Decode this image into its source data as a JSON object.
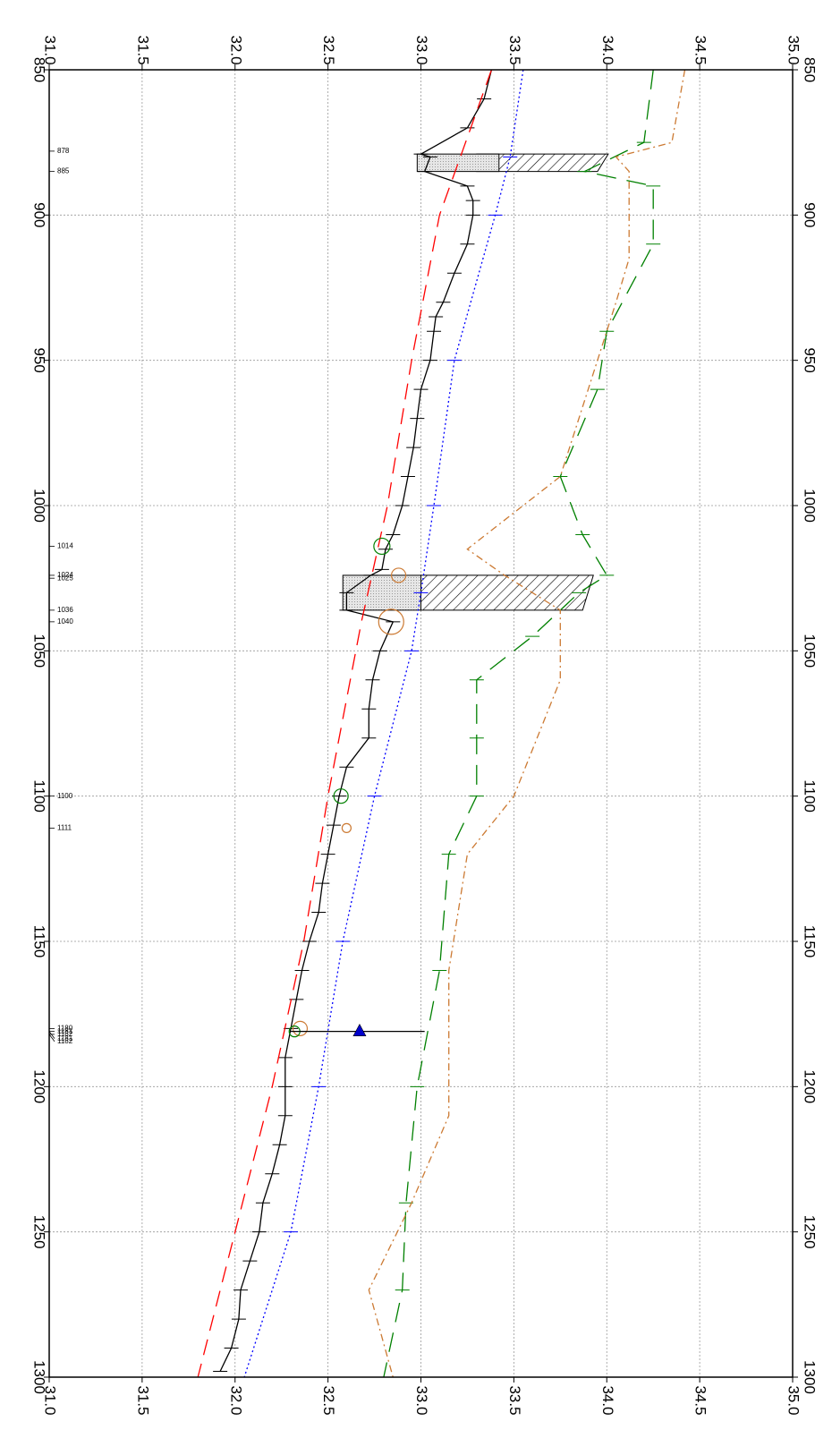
{
  "chart_data": {
    "type": "line",
    "orientation": "rotated-90-clockwise",
    "x_axis": {
      "range": [
        850,
        1300
      ],
      "ticks": [
        "850",
        "900",
        "950",
        "1000",
        "1050",
        "1100",
        "1150",
        "1200",
        "1250",
        "1300"
      ],
      "tick_values": [
        850,
        900,
        950,
        1000,
        1050,
        1100,
        1150,
        1200,
        1250,
        1300
      ]
    },
    "y_axis": {
      "range": [
        31.0,
        35.0
      ],
      "ticks": [
        "31.0",
        "31.5",
        "32.0",
        "32.5",
        "33.0",
        "33.5",
        "34.0",
        "34.5",
        "35.0"
      ],
      "tick_values": [
        31.0,
        31.5,
        32.0,
        32.5,
        33.0,
        33.5,
        34.0,
        34.5,
        35.0
      ]
    },
    "grid": true,
    "station_labels": [
      {
        "x": 878,
        "label": "878"
      },
      {
        "x": 885,
        "label": "885"
      },
      {
        "x": 1014,
        "label": "1014"
      },
      {
        "x": 1024,
        "label": "1024"
      },
      {
        "x": 1025,
        "label": "1025"
      },
      {
        "x": 1036,
        "label": "1036"
      },
      {
        "x": 1040,
        "label": "1040"
      },
      {
        "x": 1100,
        "label": "1100"
      },
      {
        "x": 1111,
        "label": "1111"
      },
      {
        "x": 1180,
        "label": "1180"
      },
      {
        "x": 1181,
        "label": "1181"
      },
      {
        "x": 1181,
        "label": "1181"
      },
      {
        "x": 1182,
        "label": "1182"
      },
      {
        "x": 1182,
        "label": "1182"
      }
    ],
    "series": [
      {
        "style": "solid",
        "color": "#000000",
        "points": [
          [
            850,
            33.38
          ],
          [
            860,
            33.34
          ],
          [
            870,
            33.25
          ],
          [
            879,
            33.0
          ],
          [
            880,
            33.05
          ],
          [
            885,
            33.02
          ],
          [
            890,
            33.25
          ],
          [
            895,
            33.28
          ],
          [
            900,
            33.28
          ],
          [
            910,
            33.25
          ],
          [
            920,
            33.18
          ],
          [
            930,
            33.12
          ],
          [
            935,
            33.08
          ],
          [
            940,
            33.07
          ],
          [
            950,
            33.05
          ],
          [
            960,
            33.0
          ],
          [
            970,
            32.98
          ],
          [
            980,
            32.96
          ],
          [
            990,
            32.93
          ],
          [
            1000,
            32.9
          ],
          [
            1010,
            32.85
          ],
          [
            1015,
            32.81
          ],
          [
            1022,
            32.79
          ],
          [
            1024,
            32.73
          ],
          [
            1030,
            32.6
          ],
          [
            1036,
            32.6
          ],
          [
            1040,
            32.85
          ],
          [
            1050,
            32.78
          ],
          [
            1060,
            32.74
          ],
          [
            1070,
            32.72
          ],
          [
            1080,
            32.72
          ],
          [
            1090,
            32.6
          ],
          [
            1100,
            32.56
          ],
          [
            1110,
            32.53
          ],
          [
            1120,
            32.5
          ],
          [
            1130,
            32.47
          ],
          [
            1140,
            32.45
          ],
          [
            1150,
            32.4
          ],
          [
            1160,
            32.36
          ],
          [
            1170,
            32.33
          ],
          [
            1180,
            32.3
          ],
          [
            1190,
            32.27
          ],
          [
            1200,
            32.27
          ],
          [
            1210,
            32.27
          ],
          [
            1220,
            32.24
          ],
          [
            1230,
            32.2
          ],
          [
            1240,
            32.15
          ],
          [
            1250,
            32.13
          ],
          [
            1260,
            32.08
          ],
          [
            1270,
            32.03
          ],
          [
            1280,
            32.02
          ],
          [
            1290,
            31.98
          ],
          [
            1298,
            31.92
          ]
        ]
      },
      {
        "style": "dashed",
        "color": "#ff0000",
        "points": [
          [
            850,
            33.38
          ],
          [
            875,
            33.24
          ],
          [
            900,
            33.1
          ],
          [
            950,
            32.95
          ],
          [
            1000,
            32.82
          ],
          [
            1040,
            32.68
          ],
          [
            1100,
            32.5
          ],
          [
            1150,
            32.37
          ],
          [
            1200,
            32.2
          ],
          [
            1250,
            32.0
          ],
          [
            1300,
            31.8
          ]
        ]
      },
      {
        "style": "dotted",
        "color": "#0000ff",
        "points": [
          [
            850,
            33.55
          ],
          [
            880,
            33.48
          ],
          [
            900,
            33.4
          ],
          [
            950,
            33.18
          ],
          [
            1000,
            33.07
          ],
          [
            1030,
            33.0
          ],
          [
            1050,
            32.95
          ],
          [
            1100,
            32.75
          ],
          [
            1150,
            32.58
          ],
          [
            1200,
            32.45
          ],
          [
            1250,
            32.3
          ],
          [
            1300,
            32.05
          ]
        ]
      },
      {
        "style": "longdash",
        "color": "#008000",
        "points": [
          [
            850,
            34.25
          ],
          [
            875,
            34.2
          ],
          [
            885,
            33.88
          ],
          [
            890,
            34.25
          ],
          [
            910,
            34.25
          ],
          [
            940,
            34.0
          ],
          [
            960,
            33.95
          ],
          [
            990,
            33.75
          ],
          [
            1010,
            33.87
          ],
          [
            1024,
            34.0
          ],
          [
            1030,
            33.85
          ],
          [
            1045,
            33.6
          ],
          [
            1060,
            33.3
          ],
          [
            1080,
            33.3
          ],
          [
            1100,
            33.3
          ],
          [
            1120,
            33.15
          ],
          [
            1160,
            33.1
          ],
          [
            1200,
            32.98
          ],
          [
            1240,
            32.92
          ],
          [
            1270,
            32.9
          ],
          [
            1300,
            32.8
          ]
        ]
      },
      {
        "style": "dashdot",
        "color": "#cc7a33",
        "points": [
          [
            850,
            34.42
          ],
          [
            875,
            34.35
          ],
          [
            880,
            34.05
          ],
          [
            885,
            34.12
          ],
          [
            900,
            34.12
          ],
          [
            915,
            34.12
          ],
          [
            930,
            34.05
          ],
          [
            960,
            33.9
          ],
          [
            990,
            33.75
          ],
          [
            1015,
            33.25
          ],
          [
            1024,
            33.45
          ],
          [
            1036,
            33.75
          ],
          [
            1060,
            33.75
          ],
          [
            1100,
            33.5
          ],
          [
            1120,
            33.25
          ],
          [
            1160,
            33.15
          ],
          [
            1210,
            33.15
          ],
          [
            1240,
            32.95
          ],
          [
            1270,
            32.72
          ],
          [
            1300,
            32.85
          ]
        ]
      }
    ],
    "hatched_bands": [
      {
        "x_from": 879,
        "x_to": 885,
        "y_from": 33.3,
        "y_to": 33.95
      },
      {
        "x_from": 1024,
        "x_to": 1036,
        "y_from": 33.0,
        "y_to": 33.87
      }
    ],
    "shaded_bands": [
      {
        "x_from": 879,
        "x_to": 885,
        "y_from": 32.98,
        "y_to": 33.42
      },
      {
        "x_from": 1024,
        "x_to": 1036,
        "y_from": 32.58,
        "y_to": 33.0
      }
    ],
    "circles": [
      {
        "x": 1014,
        "y": 32.79,
        "r": 9,
        "color": "#008000"
      },
      {
        "x": 1024,
        "y": 32.88,
        "r": 8,
        "color": "#cc7a33"
      },
      {
        "x": 1040,
        "y": 32.84,
        "r": 14,
        "color": "#cc7a33"
      },
      {
        "x": 1100,
        "y": 32.57,
        "r": 8,
        "color": "#008000"
      },
      {
        "x": 1111,
        "y": 32.6,
        "r": 5,
        "color": "#cc7a33"
      },
      {
        "x": 1180,
        "y": 32.35,
        "r": 8,
        "color": "#cc7a33"
      },
      {
        "x": 1181,
        "y": 32.32,
        "r": 6,
        "color": "#008000"
      }
    ],
    "marker": {
      "x": 1181,
      "y": 32.67,
      "shape": "triangle",
      "color": "#0000cc",
      "line_from": 32.3,
      "line_to": 33.02
    }
  }
}
